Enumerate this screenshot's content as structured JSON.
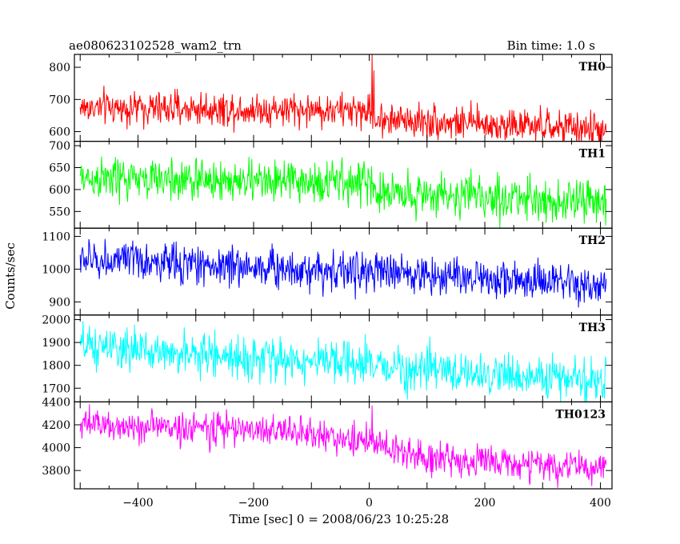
{
  "figure": {
    "title_left": "ae080623102528_wam2_trn",
    "title_right": "Bin time: 1.0 s",
    "xlabel": "Time [sec] 0 = 2008/06/23 10:25:28",
    "ylabel": "Counts/sec"
  },
  "chart_data": {
    "type": "line",
    "x_axis": {
      "range": [
        -510,
        420
      ],
      "ticks": [
        -400,
        -200,
        0,
        200,
        400
      ],
      "tick_labels": [
        "−400",
        "−200",
        "0",
        "200",
        "400"
      ]
    },
    "bin_time_s": 1.0,
    "x_start": -500,
    "x_end": 410,
    "panels": [
      {
        "name": "TH0",
        "color": "#ff0000",
        "ylim": [
          570,
          840
        ],
        "yticks": [
          600,
          700,
          800
        ],
        "trend": [
          [
            -500,
            675
          ],
          [
            0,
            665
          ],
          [
            10,
            640
          ],
          [
            410,
            605
          ]
        ],
        "noise_sd": 26,
        "spikes": [
          {
            "x": 5,
            "y": 840
          },
          {
            "x": 8,
            "y": 790
          }
        ],
        "approx_points": [
          [
            -500,
            675
          ],
          [
            -400,
            678
          ],
          [
            -300,
            676
          ],
          [
            -200,
            674
          ],
          [
            -100,
            668
          ],
          [
            0,
            665
          ],
          [
            100,
            640
          ],
          [
            200,
            630
          ],
          [
            300,
            618
          ],
          [
            400,
            605
          ]
        ]
      },
      {
        "name": "TH1",
        "color": "#00ff00",
        "ylim": [
          512,
          710
        ],
        "yticks": [
          550,
          600,
          650,
          700
        ],
        "trend": [
          [
            -500,
            625
          ],
          [
            0,
            615
          ],
          [
            10,
            595
          ],
          [
            410,
            570
          ]
        ],
        "noise_sd": 24,
        "spikes": [],
        "approx_points": [
          [
            -500,
            625
          ],
          [
            -400,
            624
          ],
          [
            -300,
            622
          ],
          [
            -200,
            620
          ],
          [
            -100,
            617
          ],
          [
            0,
            615
          ],
          [
            100,
            592
          ],
          [
            200,
            585
          ],
          [
            300,
            578
          ],
          [
            400,
            570
          ]
        ]
      },
      {
        "name": "TH2",
        "color": "#0000ff",
        "ylim": [
          860,
          1125
        ],
        "yticks": [
          900,
          1000,
          1100
        ],
        "trend": [
          [
            -500,
            1030
          ],
          [
            -100,
            1000
          ],
          [
            200,
            975
          ],
          [
            410,
            940
          ]
        ],
        "noise_sd": 30,
        "spikes": [],
        "approx_points": [
          [
            -500,
            1030
          ],
          [
            -400,
            1025
          ],
          [
            -300,
            1018
          ],
          [
            -200,
            1010
          ],
          [
            -100,
            1000
          ],
          [
            0,
            990
          ],
          [
            100,
            982
          ],
          [
            200,
            975
          ],
          [
            300,
            960
          ],
          [
            400,
            940
          ]
        ]
      },
      {
        "name": "TH3",
        "color": "#00ffff",
        "ylim": [
          1640,
          2020
        ],
        "yticks": [
          1700,
          1800,
          1900,
          2000
        ],
        "trend": [
          [
            -500,
            1880
          ],
          [
            0,
            1800
          ],
          [
            200,
            1760
          ],
          [
            410,
            1730
          ]
        ],
        "noise_sd": 45,
        "spikes": [],
        "approx_points": [
          [
            -500,
            1880
          ],
          [
            -400,
            1870
          ],
          [
            -300,
            1855
          ],
          [
            -200,
            1840
          ],
          [
            -100,
            1820
          ],
          [
            0,
            1800
          ],
          [
            100,
            1780
          ],
          [
            200,
            1760
          ],
          [
            300,
            1745
          ],
          [
            400,
            1730
          ]
        ]
      },
      {
        "name": "TH0123",
        "color": "#ff00ff",
        "ylim": [
          3640,
          4400
        ],
        "yticks": [
          3800,
          4000,
          4200,
          4400
        ],
        "trend": [
          [
            -500,
            4200
          ],
          [
            -150,
            4150
          ],
          [
            0,
            4050
          ],
          [
            80,
            3920
          ],
          [
            410,
            3810
          ]
        ],
        "noise_sd": 70,
        "spikes": [
          {
            "x": 5,
            "y": 4370
          }
        ],
        "approx_points": [
          [
            -500,
            4200
          ],
          [
            -400,
            4195
          ],
          [
            -300,
            4185
          ],
          [
            -200,
            4160
          ],
          [
            -100,
            4110
          ],
          [
            0,
            4050
          ],
          [
            100,
            3920
          ],
          [
            200,
            3880
          ],
          [
            300,
            3840
          ],
          [
            400,
            3810
          ]
        ]
      }
    ]
  }
}
